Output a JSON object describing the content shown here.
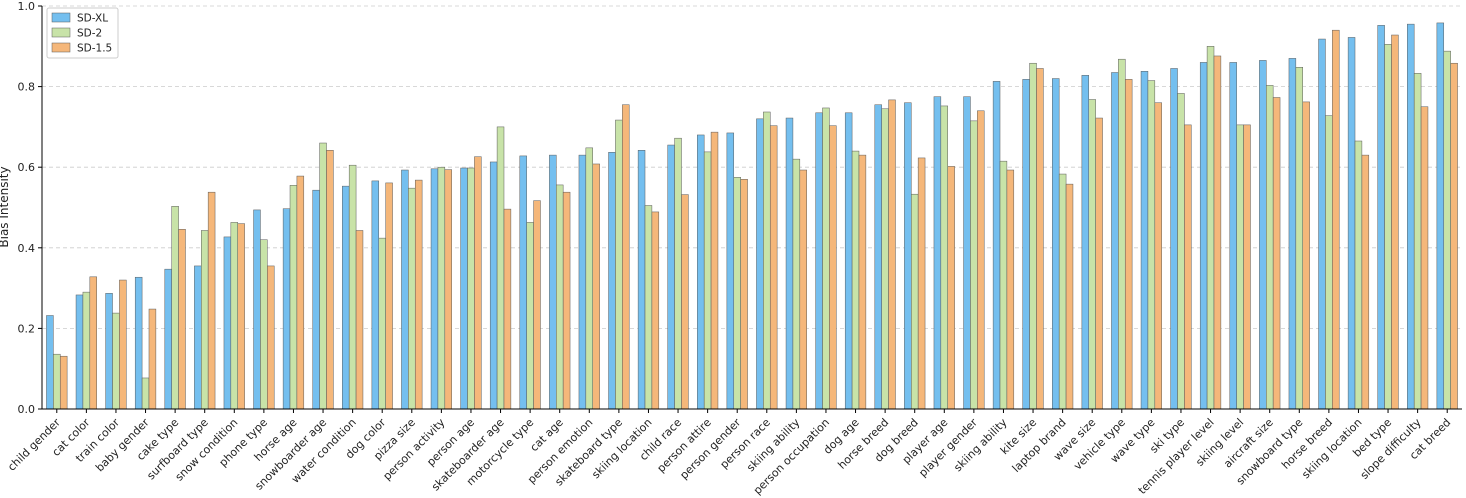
{
  "chart_data": {
    "type": "bar",
    "title": "",
    "xlabel": "",
    "ylabel": "Bias Intensity",
    "ylim": [
      0,
      1.0
    ],
    "yticks": [
      "0.0",
      "0.2",
      "0.4",
      "0.6",
      "0.8",
      "1.0"
    ],
    "grid": "horizontal dashed",
    "legend_position": "top-left",
    "categories": [
      "child gender",
      "cat color",
      "train color",
      "baby gender",
      "cake type",
      "surfboard type",
      "snow condition",
      "phone type",
      "horse age",
      "snowboarder age",
      "water condition",
      "dog color",
      "pizza size",
      "person activity",
      "person age",
      "skateboarder age",
      "motorcycle type",
      "cat age",
      "person emotion",
      "skateboard type",
      "skiing location",
      "child race",
      "person attire",
      "person gender",
      "person race",
      "skiing ability",
      "person occupation",
      "dog age",
      "horse breed",
      "dog breed",
      "player age",
      "player gender",
      "skiing ability",
      "kite size",
      "laptop brand",
      "wave size",
      "vehicle type",
      "wave type",
      "ski type",
      "tennis player level",
      "skiing level",
      "aircraft size",
      "snowboard type",
      "horse breed",
      "skiing location",
      "bed type",
      "slope difficulty",
      "cat breed"
    ],
    "series": [
      {
        "name": "SD-XL",
        "color": "#74bfef",
        "values": [
          0.232,
          0.283,
          0.287,
          0.327,
          0.347,
          0.355,
          0.427,
          0.494,
          0.497,
          0.543,
          0.553,
          0.566,
          0.593,
          0.596,
          0.598,
          0.613,
          0.628,
          0.63,
          0.63,
          0.637,
          0.642,
          0.655,
          0.68,
          0.685,
          0.72,
          0.722,
          0.735,
          0.735,
          0.755,
          0.76,
          0.775,
          0.775,
          0.813,
          0.818,
          0.82,
          0.828,
          0.835,
          0.838,
          0.845,
          0.86,
          0.86,
          0.865,
          0.87,
          0.918,
          0.922,
          0.952,
          0.955,
          0.958
        ]
      },
      {
        "name": "SD-2",
        "color": "#c8e3a8",
        "values": [
          0.136,
          0.29,
          0.238,
          0.077,
          0.503,
          0.443,
          0.463,
          0.42,
          0.555,
          0.66,
          0.605,
          0.424,
          0.548,
          0.6,
          0.598,
          0.7,
          0.463,
          0.556,
          0.648,
          0.717,
          0.505,
          0.672,
          0.638,
          0.575,
          0.737,
          0.62,
          0.747,
          0.64,
          0.745,
          0.533,
          0.752,
          0.715,
          0.615,
          0.858,
          0.583,
          0.768,
          0.868,
          0.815,
          0.783,
          0.9,
          0.705,
          0.803,
          0.848,
          0.728,
          0.665,
          0.905,
          0.833,
          0.888
        ]
      },
      {
        "name": "SD-1.5",
        "color": "#f5b77a",
        "values": [
          0.131,
          0.328,
          0.32,
          0.248,
          0.446,
          0.538,
          0.46,
          0.355,
          0.578,
          0.642,
          0.443,
          0.561,
          0.568,
          0.594,
          0.626,
          0.496,
          0.517,
          0.538,
          0.608,
          0.755,
          0.489,
          0.532,
          0.687,
          0.57,
          0.703,
          0.593,
          0.703,
          0.63,
          0.767,
          0.623,
          0.602,
          0.74,
          0.593,
          0.845,
          0.558,
          0.722,
          0.818,
          0.76,
          0.705,
          0.876,
          0.705,
          0.773,
          0.762,
          0.94,
          0.63,
          0.928,
          0.75,
          0.858
        ]
      }
    ]
  }
}
